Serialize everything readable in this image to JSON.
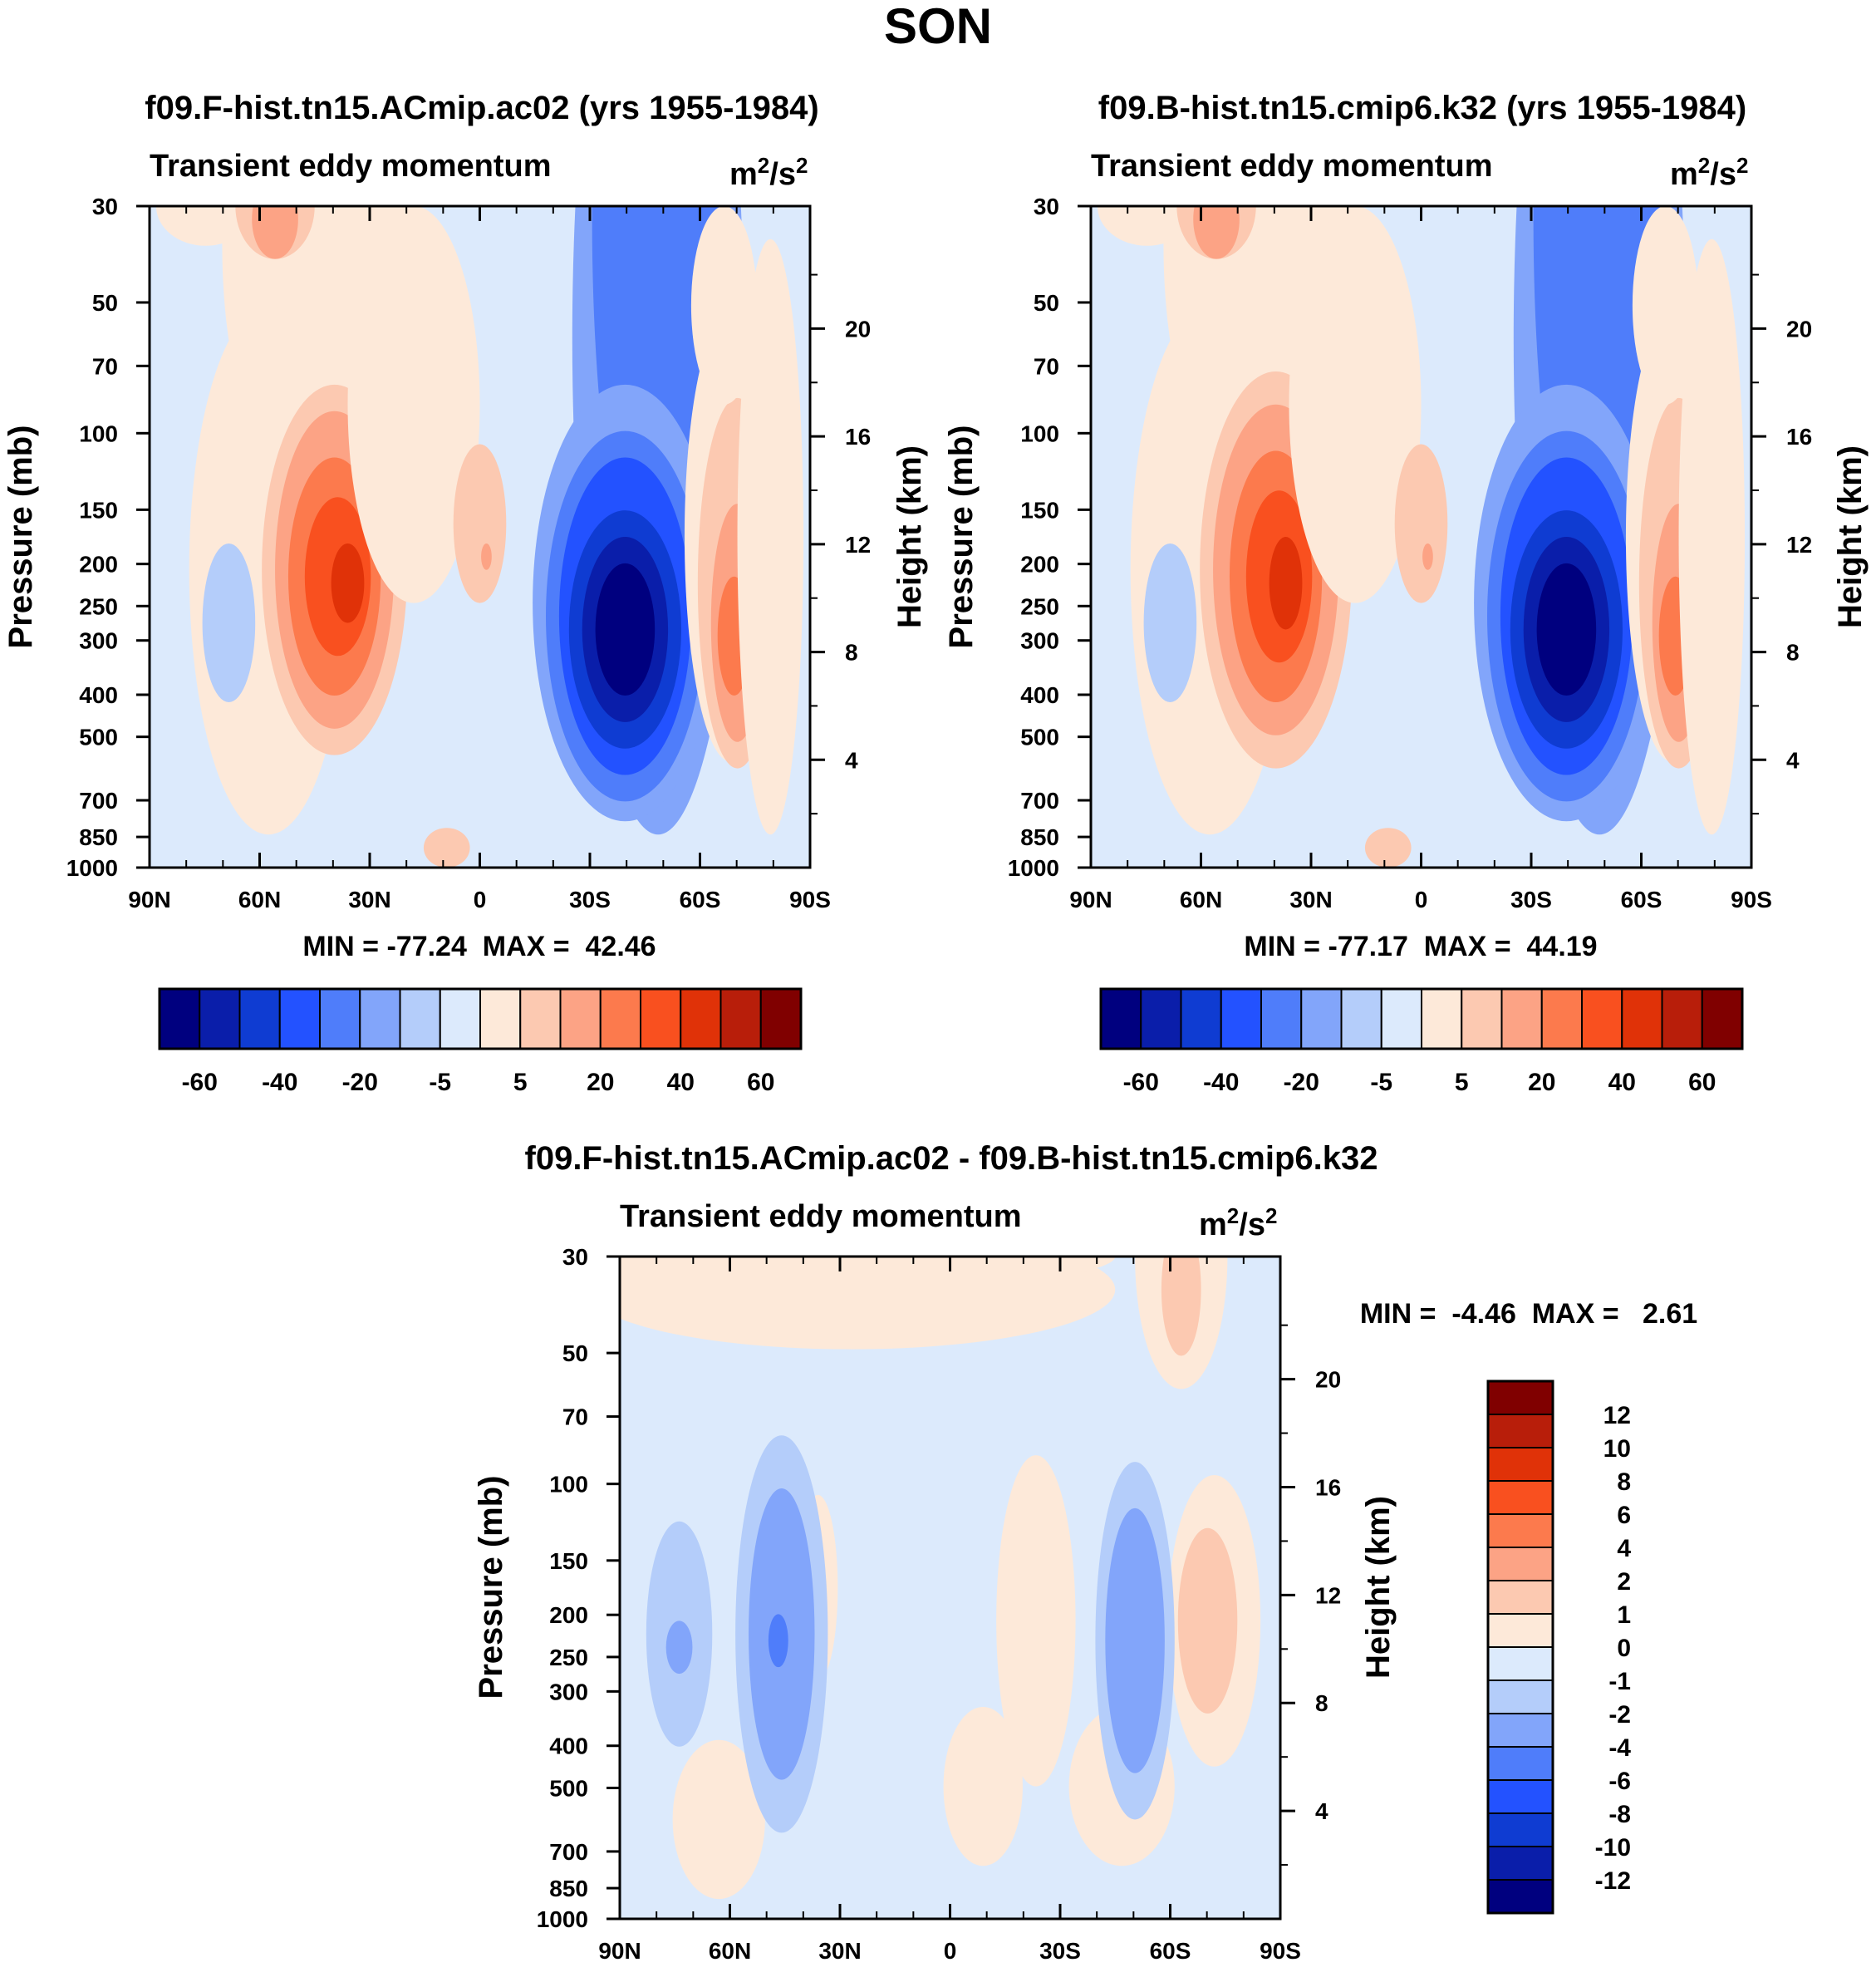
{
  "figure_title": "SON",
  "chart_data": [
    {
      "type": "heatmap",
      "id": "model",
      "title": "f09.F-hist.tn15.ACmip.ac02 (yrs 1955-1984)",
      "left_subtitle": "Transient eddy momentum",
      "units": "m2/s2",
      "units_base": "m",
      "units_exp1": "2",
      "units_mid": "/s",
      "units_exp2": "2",
      "ylabel": "Pressure (mb)",
      "ylabel_right": "Height (km)",
      "x_ticks": [
        "90N",
        "60N",
        "30N",
        "0",
        "30S",
        "60S",
        "90S"
      ],
      "y_ticks": [
        "30",
        "50",
        "70",
        "100",
        "150",
        "200",
        "250",
        "300",
        "400",
        "500",
        "700",
        "850",
        "1000"
      ],
      "y_right_ticks": [
        "20",
        "16",
        "12",
        "8",
        "4"
      ],
      "stats": "MIN = -77.24  MAX =  42.46",
      "min": -77.24,
      "max": 42.46,
      "colorbar_ticks": [
        "-60",
        "-40",
        "-20",
        "-5",
        "5",
        "20",
        "40",
        "60"
      ]
    },
    {
      "type": "heatmap",
      "id": "obs",
      "title": "f09.B-hist.tn15.cmip6.k32 (yrs 1955-1984)",
      "left_subtitle": "Transient eddy momentum",
      "units": "m2/s2",
      "units_base": "m",
      "units_exp1": "2",
      "units_mid": "/s",
      "units_exp2": "2",
      "ylabel": "Pressure (mb)",
      "ylabel_right": "Height (km)",
      "x_ticks": [
        "90N",
        "60N",
        "30N",
        "0",
        "30S",
        "60S",
        "90S"
      ],
      "y_ticks": [
        "30",
        "50",
        "70",
        "100",
        "150",
        "200",
        "250",
        "300",
        "400",
        "500",
        "700",
        "850",
        "1000"
      ],
      "y_right_ticks": [
        "20",
        "16",
        "12",
        "8",
        "4"
      ],
      "stats": "MIN = -77.17  MAX =  44.19",
      "min": -77.17,
      "max": 44.19,
      "colorbar_ticks": [
        "-60",
        "-40",
        "-20",
        "-5",
        "5",
        "20",
        "40",
        "60"
      ]
    },
    {
      "type": "heatmap",
      "id": "diff",
      "title": "f09.F-hist.tn15.ACmip.ac02 - f09.B-hist.tn15.cmip6.k32",
      "left_subtitle": "Transient eddy momentum",
      "units": "m2/s2",
      "units_base": "m",
      "units_exp1": "2",
      "units_mid": "/s",
      "units_exp2": "2",
      "ylabel": "Pressure (mb)",
      "ylabel_right": "Height (km)",
      "x_ticks": [
        "90N",
        "60N",
        "30N",
        "0",
        "30S",
        "60S",
        "90S"
      ],
      "y_ticks": [
        "30",
        "50",
        "70",
        "100",
        "150",
        "200",
        "250",
        "300",
        "400",
        "500",
        "700",
        "850",
        "1000"
      ],
      "y_right_ticks": [
        "20",
        "16",
        "12",
        "8",
        "4"
      ],
      "stats": "MIN =  -4.46  MAX =   2.61",
      "min": -4.46,
      "max": 2.61,
      "colorbar_ticks": [
        "12",
        "10",
        "8",
        "6",
        "4",
        "2",
        "1",
        "0",
        "-1",
        "-2",
        "-4",
        "-6",
        "-8",
        "-10",
        "-12"
      ]
    }
  ],
  "palette": [
    "#00007f",
    "#0a1eaa",
    "#0f3cd2",
    "#2352ff",
    "#4f7dfa",
    "#82a5fa",
    "#b4cdfa",
    "#dceafc",
    "#fde9d9",
    "#fcc9b1",
    "#fca385",
    "#fc7a4d",
    "#f9501f",
    "#e03208",
    "#b81e0a",
    "#800000"
  ]
}
